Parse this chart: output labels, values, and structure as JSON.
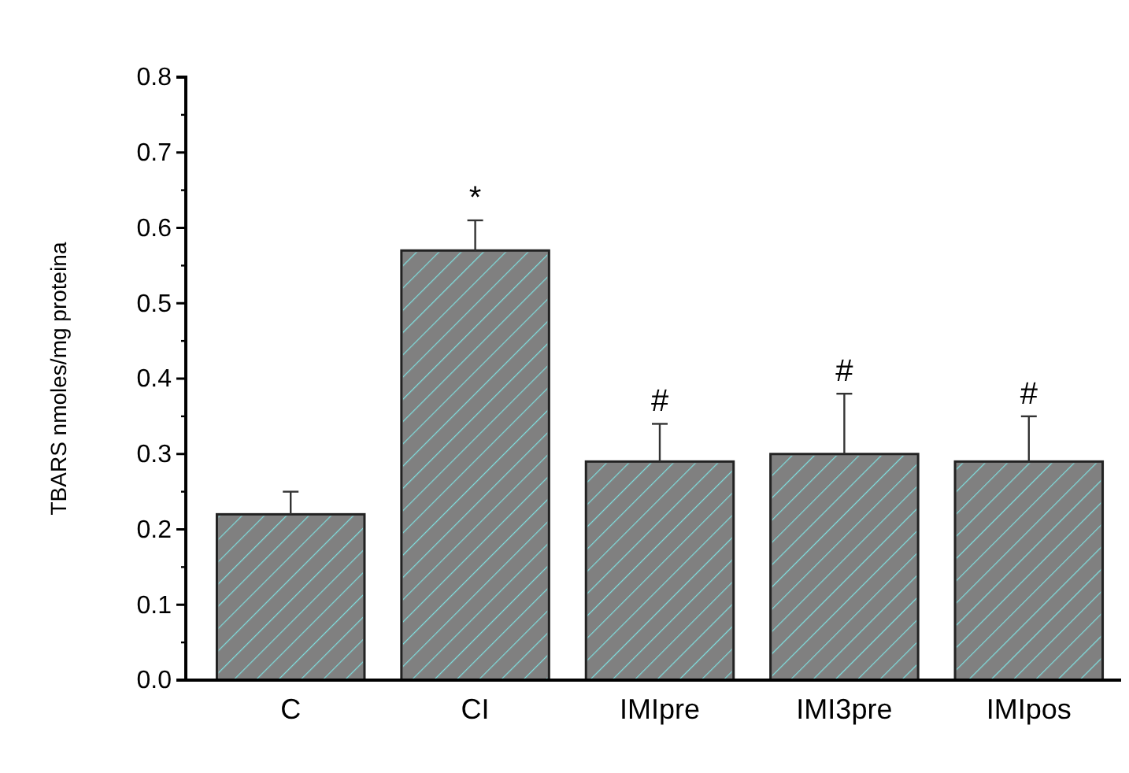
{
  "chart_data": {
    "type": "bar",
    "ylabel": "TBARS nmoles/mg proteina",
    "categories": [
      "C",
      "CI",
      "IMIpre",
      "IMI3pre",
      "IMIpos"
    ],
    "values": [
      0.22,
      0.57,
      0.29,
      0.3,
      0.29
    ],
    "errors": [
      [
        0.22,
        0.25
      ],
      [
        0.57,
        0.61
      ],
      [
        0.29,
        0.34
      ],
      [
        0.3,
        0.38
      ],
      [
        0.29,
        0.35
      ]
    ],
    "color": "#808080",
    "ylim": [
      0,
      0.8
    ],
    "yticks": [
      {
        "value": 0,
        "label": "0.0"
      },
      0.1,
      0.2,
      0.3,
      0.4,
      0.5,
      0.6,
      0.7,
      0.8
    ],
    "grid": false,
    "annotations": [
      {
        "text": "*",
        "x": "CI",
        "y": 0.61
      },
      {
        "text": "#",
        "x": "IMIpre",
        "y": 0.34
      },
      {
        "text": "#",
        "x": "IMI3pre",
        "y": 0.38
      },
      {
        "text": "#",
        "x": "IMIpos",
        "y": 0.35
      }
    ]
  }
}
